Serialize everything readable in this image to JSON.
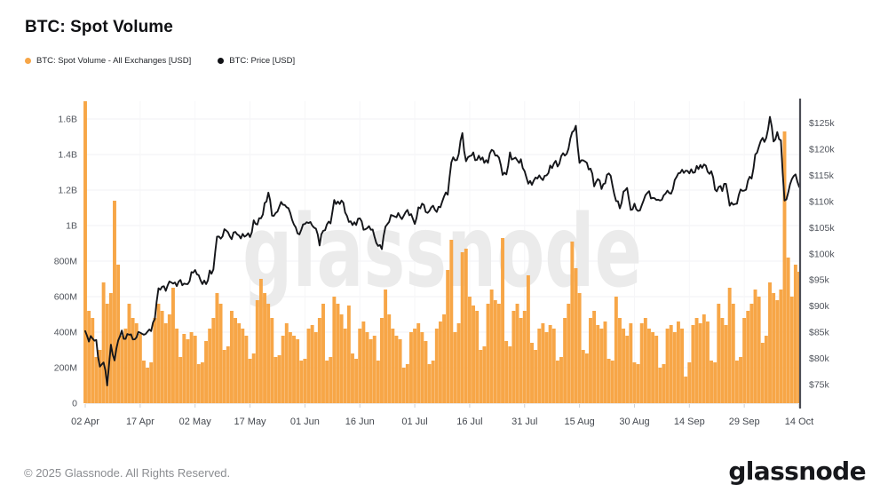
{
  "header": {
    "title": "BTC: Spot Volume"
  },
  "legend": [
    {
      "label": "BTC: Spot Volume - All Exchanges [USD]",
      "color": "#F7A647",
      "marker": "dot-icon"
    },
    {
      "label": "BTC: Price [USD]",
      "color": "#111216",
      "marker": "dot-icon"
    }
  ],
  "watermark": "glassnode",
  "footer": {
    "copyright": "© 2025 Glassnode. All Rights Reserved.",
    "logo": "glassnode"
  },
  "chart_data": {
    "type": "combo",
    "title": "BTC: Spot Volume",
    "x_start_date": "2025-04-02",
    "x_end_date": "2025-10-14",
    "x_tick_labels": [
      "02 Apr",
      "17 Apr",
      "02 May",
      "17 May",
      "01 Jun",
      "16 Jun",
      "01 Jul",
      "16 Jul",
      "31 Jul",
      "15 Aug",
      "30 Aug",
      "14 Sep",
      "29 Sep",
      "14 Oct"
    ],
    "x_tick_day_index": [
      0,
      15,
      30,
      45,
      60,
      75,
      90,
      105,
      120,
      135,
      150,
      165,
      180,
      195
    ],
    "left_axis": {
      "title": "Spot Volume",
      "unit": "USD",
      "tick_labels": [
        "0",
        "200M",
        "400M",
        "600M",
        "800M",
        "1B",
        "1.2B",
        "1.4B",
        "1.6B"
      ],
      "tick_values_musd": [
        0,
        200,
        400,
        600,
        800,
        1000,
        1200,
        1400,
        1600
      ],
      "range_musd": [
        0,
        1700
      ],
      "grid": true
    },
    "right_axis": {
      "title": "BTC Price",
      "unit": "USD",
      "tick_labels": [
        "$75k",
        "$80k",
        "$85k",
        "$90k",
        "$95k",
        "$100k",
        "$105k",
        "$110k",
        "$115k",
        "$120k",
        "$125k"
      ],
      "tick_values_kusd": [
        75,
        80,
        85,
        90,
        95,
        100,
        105,
        110,
        115,
        120,
        125
      ],
      "range_kusd": [
        71.4,
        129.2
      ],
      "grid": false
    },
    "legend_position": "top-left",
    "series": [
      {
        "name": "BTC: Spot Volume - All Exchanges [USD]",
        "type": "bar",
        "axis": "left",
        "color": "#F7A647",
        "unit": "million USD",
        "values": [
          1700,
          520,
          480,
          260,
          300,
          680,
          560,
          620,
          1140,
          780,
          380,
          420,
          560,
          480,
          450,
          390,
          240,
          200,
          230,
          480,
          560,
          520,
          450,
          500,
          650,
          420,
          260,
          390,
          360,
          400,
          380,
          220,
          230,
          350,
          420,
          480,
          620,
          560,
          300,
          320,
          520,
          480,
          450,
          420,
          380,
          250,
          280,
          580,
          700,
          620,
          560,
          480,
          260,
          270,
          380,
          450,
          400,
          380,
          360,
          240,
          250,
          420,
          440,
          400,
          480,
          560,
          240,
          260,
          600,
          560,
          500,
          420,
          550,
          280,
          250,
          420,
          460,
          400,
          360,
          380,
          240,
          480,
          640,
          500,
          420,
          380,
          360,
          200,
          220,
          400,
          420,
          450,
          400,
          350,
          220,
          240,
          420,
          460,
          500,
          750,
          920,
          400,
          450,
          850,
          870,
          600,
          550,
          520,
          300,
          320,
          560,
          640,
          580,
          560,
          930,
          350,
          320,
          520,
          560,
          480,
          520,
          720,
          340,
          300,
          420,
          450,
          400,
          440,
          420,
          240,
          260,
          480,
          560,
          910,
          760,
          620,
          300,
          280,
          480,
          520,
          440,
          420,
          460,
          250,
          240,
          600,
          480,
          420,
          380,
          450,
          230,
          220,
          450,
          480,
          420,
          400,
          380,
          200,
          220,
          420,
          440,
          400,
          460,
          420,
          150,
          230,
          440,
          480,
          450,
          500,
          460,
          240,
          230,
          560,
          480,
          440,
          650,
          560,
          240,
          260,
          480,
          520,
          560,
          640,
          600,
          340,
          380,
          680,
          620,
          580,
          640,
          1530,
          820,
          600,
          780,
          740
        ]
      },
      {
        "name": "BTC: Price [USD]",
        "type": "line",
        "axis": "right",
        "color": "#15161a",
        "unit": "thousand USD",
        "values": [
          85.2,
          83.2,
          83.8,
          83.5,
          78.4,
          79.2,
          74.8,
          82.6,
          79.6,
          83.4,
          85.3,
          83.7,
          84.5,
          83.6,
          84.0,
          84.9,
          84.5,
          85.1,
          85.2,
          87.5,
          93.4,
          93.7,
          92.9,
          94.7,
          94.3,
          93.8,
          95.0,
          94.3,
          94.2,
          96.5,
          96.9,
          95.9,
          94.2,
          94.2,
          96.8,
          97.0,
          103.3,
          102.9,
          104.7,
          104.1,
          102.8,
          104.2,
          103.5,
          103.8,
          103.5,
          103.2,
          106.4,
          105.6,
          106.8,
          109.7,
          111.7,
          107.3,
          107.8,
          109.0,
          109.4,
          108.9,
          107.8,
          105.6,
          103.9,
          104.6,
          105.7,
          105.9,
          105.4,
          104.8,
          101.6,
          104.4,
          105.6,
          105.8,
          110.3,
          110.0,
          110.2,
          107.9,
          106.1,
          105.5,
          105.5,
          106.8,
          104.6,
          104.9,
          104.6,
          103.3,
          101.5,
          100.9,
          105.2,
          106.1,
          107.3,
          107.0,
          107.1,
          107.3,
          108.4,
          107.6,
          105.7,
          108.9,
          109.6,
          108.0,
          108.2,
          109.2,
          108.0,
          108.9,
          111.0,
          111.3,
          117.5,
          117.9,
          119.1,
          123.1,
          117.7,
          118.7,
          119.4,
          118.0,
          118.0,
          117.4,
          117.4,
          119.9,
          118.8,
          118.4,
          115.1,
          115.2,
          119.4,
          118.2,
          117.9,
          118.1,
          115.8,
          113.4,
          113.2,
          114.6,
          115.0,
          114.1,
          115.0,
          116.9,
          117.3,
          116.7,
          118.7,
          118.8,
          120.1,
          123.3,
          124.5,
          117.4,
          117.9,
          117.4,
          116.3,
          112.9,
          114.3,
          112.4,
          113.5,
          115.4,
          113.1,
          110.1,
          108.7,
          111.9,
          112.6,
          108.4,
          109.6,
          108.2,
          109.3,
          111.2,
          112.0,
          110.7,
          110.3,
          110.2,
          111.2,
          112.1,
          111.5,
          114.1,
          115.4,
          116.1,
          115.9,
          115.4,
          115.5,
          116.8,
          117.0,
          117.1,
          115.7,
          115.8,
          112.3,
          112.8,
          112.0,
          113.4,
          109.2,
          109.4,
          109.6,
          112.3,
          112.1,
          114.0,
          114.4,
          119.0,
          120.5,
          122.2,
          122.2,
          126.2,
          121.5,
          123.3,
          121.7,
          110.2,
          111.7,
          114.3,
          115.2,
          112.8
        ]
      }
    ]
  },
  "colors": {
    "volume_orange": "#F7A647",
    "price_black": "#15161a",
    "grid": "#f1f1f4",
    "axis_text": "#50545c",
    "right_border": "#4b4d55",
    "watermark_gray": "#ebebeb"
  }
}
